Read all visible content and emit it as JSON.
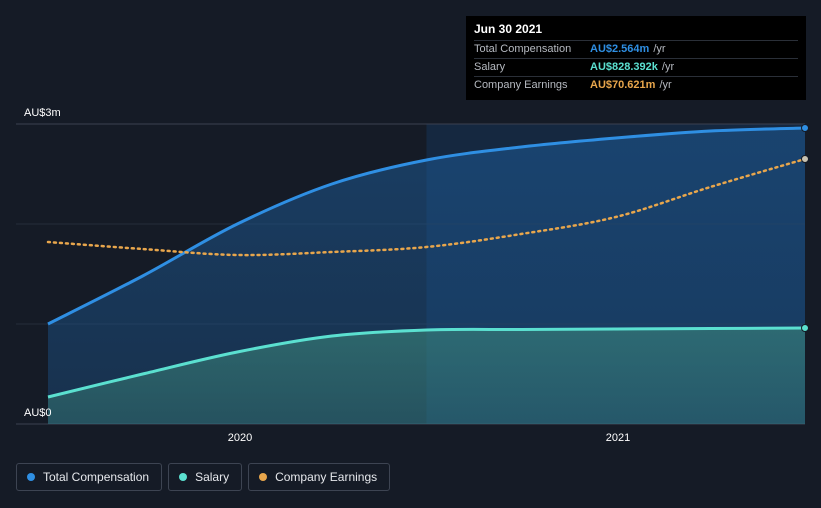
{
  "chart_data": {
    "type": "area",
    "ylabel_units": "AU$",
    "ylim": [
      0,
      3
    ],
    "y_tick_labels": [
      "AU$0",
      "AU$3m"
    ],
    "x_tick_labels": [
      "2020",
      "2021"
    ],
    "x_range": [
      2019.5,
      2021.5
    ],
    "highlight_start": 2020.5,
    "series": [
      {
        "name": "Total Compensation",
        "color": "#2f8fe3",
        "style": "solid-area",
        "points": [
          [
            2019.5,
            1.0
          ],
          [
            2019.75,
            1.48
          ],
          [
            2020.0,
            2.0
          ],
          [
            2020.25,
            2.4
          ],
          [
            2020.5,
            2.64
          ],
          [
            2020.75,
            2.77
          ],
          [
            2021.0,
            2.86
          ],
          [
            2021.25,
            2.93
          ],
          [
            2021.5,
            2.96
          ]
        ]
      },
      {
        "name": "Salary",
        "color": "#5be0d0",
        "style": "solid-area",
        "points": [
          [
            2019.5,
            0.27
          ],
          [
            2019.75,
            0.5
          ],
          [
            2020.0,
            0.72
          ],
          [
            2020.25,
            0.88
          ],
          [
            2020.5,
            0.94
          ],
          [
            2020.75,
            0.945
          ],
          [
            2021.0,
            0.95
          ],
          [
            2021.25,
            0.955
          ],
          [
            2021.5,
            0.96
          ]
        ]
      },
      {
        "name": "Company Earnings",
        "color": "#e8a64c",
        "style": "dotted",
        "points": [
          [
            2019.5,
            1.82
          ],
          [
            2019.75,
            1.75
          ],
          [
            2020.0,
            1.69
          ],
          [
            2020.25,
            1.72
          ],
          [
            2020.5,
            1.77
          ],
          [
            2020.75,
            1.9
          ],
          [
            2021.0,
            2.07
          ],
          [
            2021.25,
            2.37
          ],
          [
            2021.5,
            2.65
          ]
        ]
      }
    ]
  },
  "tooltip": {
    "date": "Jun 30 2021",
    "rows": [
      {
        "label": "Total Compensation",
        "value": "AU$2.564m",
        "unit": "/yr",
        "color": "#2f8fe3"
      },
      {
        "label": "Salary",
        "value": "AU$828.392k",
        "unit": "/yr",
        "color": "#5be0d0"
      },
      {
        "label": "Company Earnings",
        "value": "AU$70.621m",
        "unit": "/yr",
        "color": "#e8a64c"
      }
    ]
  },
  "legend": [
    {
      "label": "Total Compensation",
      "color": "#2f8fe3"
    },
    {
      "label": "Salary",
      "color": "#5be0d0"
    },
    {
      "label": "Company Earnings",
      "color": "#e8a64c"
    }
  ]
}
